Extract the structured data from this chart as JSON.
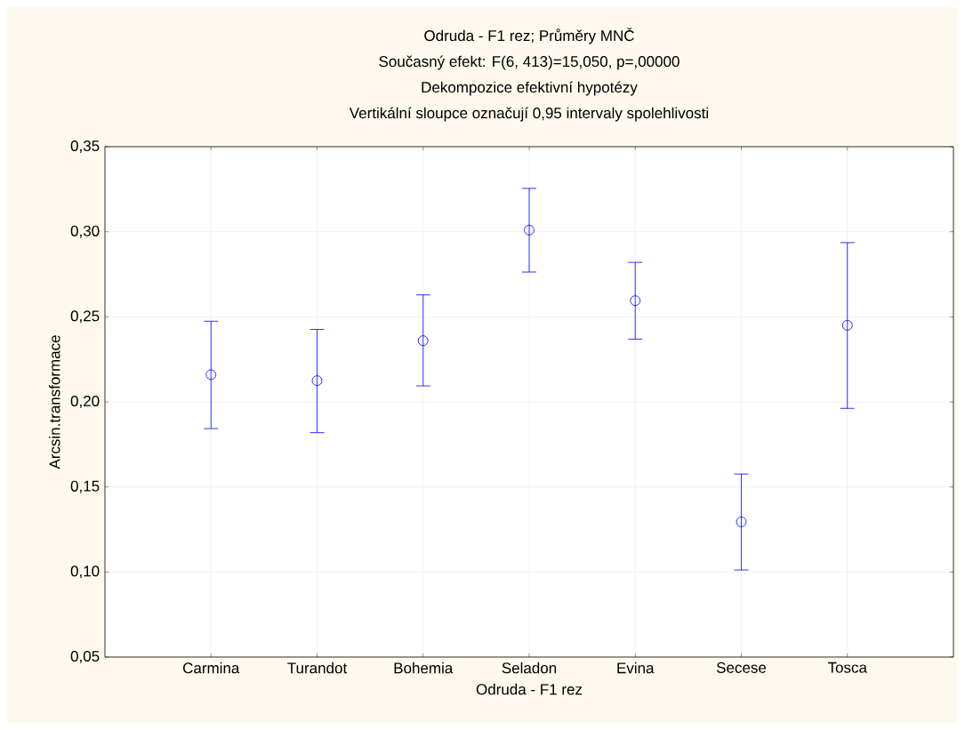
{
  "chart_data": {
    "type": "scatter",
    "title": "Odruda - F1 rez; Průměry MNČ",
    "subtitle": "Současný efekt: F(6, 413)=15,050, p=,00000",
    "annotations": [
      "Dekompozice efektivní hypotézy",
      "Vertikální sloupce označují 0,95 intervaly spolehlivosti"
    ],
    "xlabel": "Odruda - F1 rez",
    "ylabel": "Arcsin.transformace",
    "categories": [
      "Carmina",
      "Turandot",
      "Bohemia",
      "Seladon",
      "Evina",
      "Secese",
      "Tosca"
    ],
    "values": [
      0.216,
      0.2125,
      0.236,
      0.301,
      0.2595,
      0.1295,
      0.245
    ],
    "errors": [
      [
        0.1843,
        0.2474
      ],
      [
        0.1819,
        0.2426
      ],
      [
        0.2094,
        0.2629
      ],
      [
        0.2763,
        0.3255
      ],
      [
        0.2369,
        0.282
      ],
      [
        0.1012,
        0.1576
      ],
      [
        0.1962,
        0.2936
      ]
    ],
    "color": "#0000ff",
    "marker": "circle",
    "grid": true,
    "ylim": [
      0.05,
      0.35
    ],
    "yticks": [
      {
        "value": 0.05,
        "label": "0,05"
      },
      {
        "value": 0.1,
        "label": "0,10"
      },
      {
        "value": 0.15,
        "label": "0,15"
      },
      {
        "value": 0.2,
        "label": "0,20"
      },
      {
        "value": 0.25,
        "label": "0,25"
      },
      {
        "value": 0.3,
        "label": "0,30"
      },
      {
        "value": 0.35,
        "label": "0,35"
      }
    ]
  }
}
